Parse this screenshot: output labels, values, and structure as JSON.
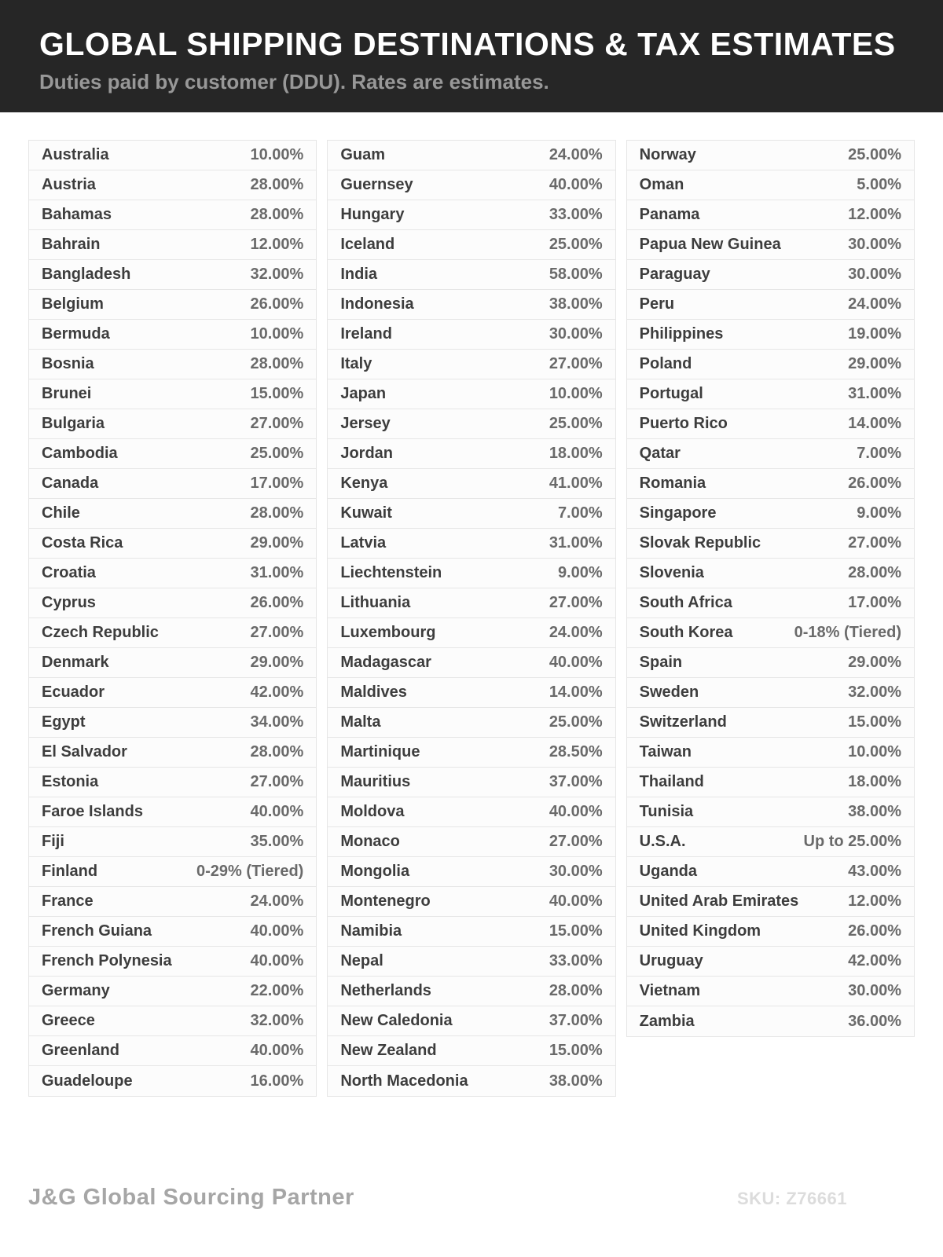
{
  "header": {
    "title": "GLOBAL SHIPPING DESTINATIONS & TAX ESTIMATES",
    "subtitle": "Duties paid by customer (DDU). Rates are estimates."
  },
  "table": {
    "columns": [
      {
        "rows": [
          {
            "country": "Australia",
            "rate": "10.00%"
          },
          {
            "country": "Austria",
            "rate": "28.00%"
          },
          {
            "country": "Bahamas",
            "rate": "28.00%"
          },
          {
            "country": "Bahrain",
            "rate": "12.00%"
          },
          {
            "country": "Bangladesh",
            "rate": "32.00%"
          },
          {
            "country": "Belgium",
            "rate": "26.00%"
          },
          {
            "country": "Bermuda",
            "rate": "10.00%"
          },
          {
            "country": "Bosnia",
            "rate": "28.00%"
          },
          {
            "country": "Brunei",
            "rate": "15.00%"
          },
          {
            "country": "Bulgaria",
            "rate": "27.00%"
          },
          {
            "country": "Cambodia",
            "rate": "25.00%"
          },
          {
            "country": "Canada",
            "rate": "17.00%"
          },
          {
            "country": "Chile",
            "rate": "28.00%"
          },
          {
            "country": "Costa Rica",
            "rate": "29.00%"
          },
          {
            "country": "Croatia",
            "rate": "31.00%"
          },
          {
            "country": "Cyprus",
            "rate": "26.00%"
          },
          {
            "country": "Czech Republic",
            "rate": "27.00%"
          },
          {
            "country": "Denmark",
            "rate": "29.00%"
          },
          {
            "country": "Ecuador",
            "rate": "42.00%"
          },
          {
            "country": "Egypt",
            "rate": "34.00%"
          },
          {
            "country": "El Salvador",
            "rate": "28.00%"
          },
          {
            "country": "Estonia",
            "rate": "27.00%"
          },
          {
            "country": "Faroe Islands",
            "rate": "40.00%"
          },
          {
            "country": "Fiji",
            "rate": "35.00%"
          },
          {
            "country": "Finland",
            "rate": "0-29% (Tiered)"
          },
          {
            "country": "France",
            "rate": "24.00%"
          },
          {
            "country": "French Guiana",
            "rate": "40.00%"
          },
          {
            "country": "French Polynesia",
            "rate": "40.00%"
          },
          {
            "country": "Germany",
            "rate": "22.00%"
          },
          {
            "country": "Greece",
            "rate": "32.00%"
          },
          {
            "country": "Greenland",
            "rate": "40.00%"
          },
          {
            "country": "Guadeloupe",
            "rate": "16.00%"
          }
        ]
      },
      {
        "rows": [
          {
            "country": "Guam",
            "rate": "24.00%"
          },
          {
            "country": "Guernsey",
            "rate": "40.00%"
          },
          {
            "country": "Hungary",
            "rate": "33.00%"
          },
          {
            "country": "Iceland",
            "rate": "25.00%"
          },
          {
            "country": "India",
            "rate": "58.00%"
          },
          {
            "country": "Indonesia",
            "rate": "38.00%"
          },
          {
            "country": "Ireland",
            "rate": "30.00%"
          },
          {
            "country": "Italy",
            "rate": "27.00%"
          },
          {
            "country": "Japan",
            "rate": "10.00%"
          },
          {
            "country": "Jersey",
            "rate": "25.00%"
          },
          {
            "country": "Jordan",
            "rate": "18.00%"
          },
          {
            "country": "Kenya",
            "rate": "41.00%"
          },
          {
            "country": "Kuwait",
            "rate": "7.00%"
          },
          {
            "country": "Latvia",
            "rate": "31.00%"
          },
          {
            "country": "Liechtenstein",
            "rate": "9.00%"
          },
          {
            "country": "Lithuania",
            "rate": "27.00%"
          },
          {
            "country": "Luxembourg",
            "rate": "24.00%"
          },
          {
            "country": "Madagascar",
            "rate": "40.00%"
          },
          {
            "country": "Maldives",
            "rate": "14.00%"
          },
          {
            "country": "Malta",
            "rate": "25.00%"
          },
          {
            "country": "Martinique",
            "rate": "28.50%"
          },
          {
            "country": "Mauritius",
            "rate": "37.00%"
          },
          {
            "country": "Moldova",
            "rate": "40.00%"
          },
          {
            "country": "Monaco",
            "rate": "27.00%"
          },
          {
            "country": "Mongolia",
            "rate": "30.00%"
          },
          {
            "country": "Montenegro",
            "rate": "40.00%"
          },
          {
            "country": "Namibia",
            "rate": "15.00%"
          },
          {
            "country": "Nepal",
            "rate": "33.00%"
          },
          {
            "country": "Netherlands",
            "rate": "28.00%"
          },
          {
            "country": "New Caledonia",
            "rate": "37.00%"
          },
          {
            "country": "New Zealand",
            "rate": "15.00%"
          },
          {
            "country": "North Macedonia",
            "rate": "38.00%"
          }
        ]
      },
      {
        "rows": [
          {
            "country": "Norway",
            "rate": "25.00%"
          },
          {
            "country": "Oman",
            "rate": "5.00%"
          },
          {
            "country": "Panama",
            "rate": "12.00%"
          },
          {
            "country": "Papua New Guinea",
            "rate": "30.00%"
          },
          {
            "country": "Paraguay",
            "rate": "30.00%"
          },
          {
            "country": "Peru",
            "rate": "24.00%"
          },
          {
            "country": "Philippines",
            "rate": "19.00%"
          },
          {
            "country": "Poland",
            "rate": "29.00%"
          },
          {
            "country": "Portugal",
            "rate": "31.00%"
          },
          {
            "country": "Puerto Rico",
            "rate": "14.00%"
          },
          {
            "country": "Qatar",
            "rate": "7.00%"
          },
          {
            "country": "Romania",
            "rate": "26.00%"
          },
          {
            "country": "Singapore",
            "rate": "9.00%"
          },
          {
            "country": "Slovak Republic",
            "rate": "27.00%"
          },
          {
            "country": "Slovenia",
            "rate": "28.00%"
          },
          {
            "country": "South Africa",
            "rate": "17.00%"
          },
          {
            "country": "South Korea",
            "rate": "0-18% (Tiered)"
          },
          {
            "country": "Spain",
            "rate": "29.00%"
          },
          {
            "country": "Sweden",
            "rate": "32.00%"
          },
          {
            "country": "Switzerland",
            "rate": "15.00%"
          },
          {
            "country": "Taiwan",
            "rate": "10.00%"
          },
          {
            "country": "Thailand",
            "rate": "18.00%"
          },
          {
            "country": "Tunisia",
            "rate": "38.00%"
          },
          {
            "country": "U.S.A.",
            "rate": "Up to 25.00%"
          },
          {
            "country": "Uganda",
            "rate": "43.00%"
          },
          {
            "country": "United Arab Emirates",
            "rate": "12.00%"
          },
          {
            "country": "United Kingdom",
            "rate": "26.00%"
          },
          {
            "country": "Uruguay",
            "rate": "42.00%"
          },
          {
            "country": "Vietnam",
            "rate": "30.00%"
          },
          {
            "country": "Zambia",
            "rate": "36.00%"
          }
        ]
      }
    ]
  },
  "footer": {
    "brand": "J&G Global Sourcing Partner",
    "sku": "SKU: Z76661"
  },
  "colors": {
    "header_bg": "#262626",
    "title": "#ffffff",
    "subtitle": "#989898",
    "row_bg": "#fcfcfc",
    "row_border": "#e6e6e6",
    "country_text": "#3d3d3d",
    "rate_text": "#6a6a6a",
    "brand_text": "#a6a6a6",
    "sku_text": "#dcdcdc"
  }
}
